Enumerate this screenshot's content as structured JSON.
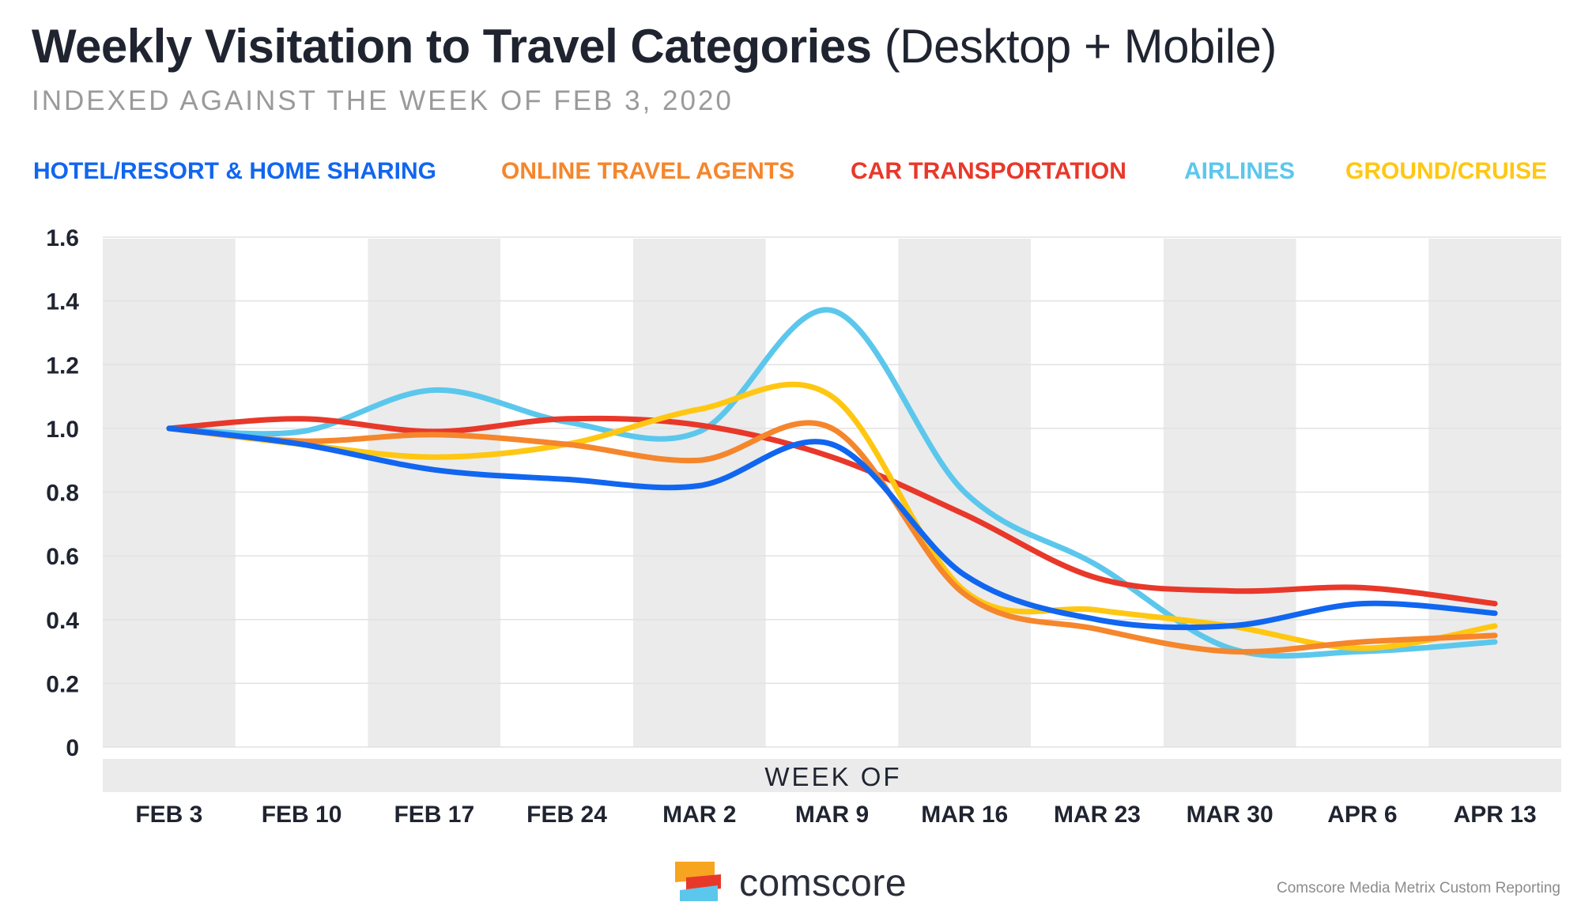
{
  "chart_data": {
    "type": "line",
    "title_bold": "Weekly Visitation to Travel Categories",
    "title_light": "(Desktop + Mobile)",
    "subtitle": "INDEXED AGAINST THE WEEK OF FEB 3, 2020",
    "xlabel": "WEEK OF",
    "ylabel": "",
    "categories": [
      "FEB 3",
      "FEB 10",
      "FEB 17",
      "FEB 24",
      "MAR 2",
      "MAR 9",
      "MAR 16",
      "MAR 23",
      "MAR 30",
      "APR 6",
      "APR 13"
    ],
    "ylim": [
      0,
      1.6
    ],
    "yticks": [
      "0",
      "0.2",
      "0.4",
      "0.6",
      "0.8",
      "1.0",
      "1.2",
      "1.4",
      "1.6"
    ],
    "grid": true,
    "legend_position": "top",
    "series": [
      {
        "name": "HOTEL/RESORT & HOME SHARING",
        "color": "#1166f0",
        "values": [
          1.0,
          0.95,
          0.87,
          0.84,
          0.82,
          0.95,
          0.54,
          0.4,
          0.38,
          0.45,
          0.42
        ]
      },
      {
        "name": "ONLINE TRAVEL AGENTS",
        "color": "#f5862c",
        "values": [
          1.0,
          0.96,
          0.98,
          0.95,
          0.9,
          1.0,
          0.48,
          0.37,
          0.3,
          0.33,
          0.35
        ]
      },
      {
        "name": "CAR TRANSPORTATION",
        "color": "#e8382a",
        "values": [
          1.0,
          1.03,
          0.99,
          1.03,
          1.01,
          0.91,
          0.73,
          0.53,
          0.49,
          0.5,
          0.45
        ]
      },
      {
        "name": "AIRLINES",
        "color": "#5cc7ec",
        "values": [
          1.0,
          0.99,
          1.12,
          1.02,
          0.99,
          1.37,
          0.8,
          0.57,
          0.31,
          0.3,
          0.33
        ]
      },
      {
        "name": "GROUND/CRUISE",
        "color": "#ffc712",
        "values": [
          1.0,
          0.95,
          0.91,
          0.95,
          1.06,
          1.1,
          0.49,
          0.43,
          0.38,
          0.31,
          0.38
        ]
      }
    ]
  },
  "footer": {
    "brand": "comscore",
    "source": "Comscore Media Metrix Custom Reporting"
  }
}
